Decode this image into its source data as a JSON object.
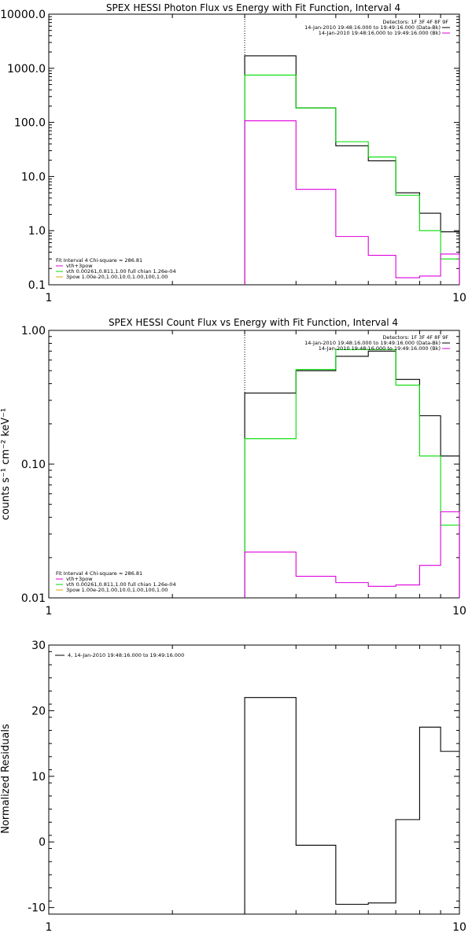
{
  "chart_data": [
    {
      "type": "line",
      "title": "SPEX HESSI Photon Flux vs Energy with Fit Function, Interval 4",
      "xscale": "log",
      "yscale": "log",
      "xlim": [
        1,
        10
      ],
      "ylim": [
        0.1,
        10000
      ],
      "x_tick_labels": [
        "1",
        "10"
      ],
      "y_tick_labels": [
        "0.1",
        "1.0",
        "10.0",
        "100.0",
        "1000.0",
        "10000.0"
      ],
      "y_ticks": [
        0.1,
        1,
        10,
        100,
        1000,
        10000
      ],
      "xlabel": "",
      "ylabel": "",
      "vline": 3,
      "legend_top_right": [
        "Detectors: 1F 3F 4F 8F 9F",
        "14-Jan-2010 19:48:16.000 to 19:49:16.000 (Data-Bk)",
        "14-Jan-2010 19:48:16.000 to 19:49:16.000 (Bk)"
      ],
      "legend_bottom_left": [
        "Fit Interval 4   Chi-square = 286.81",
        "vth+3pow",
        "vth 0.00261,0.811,1.00   full chian 1.26e-04",
        "3pow 1.00e-20,1.00,10.0,1.00,100,1.00"
      ],
      "bin_edges": [
        3,
        4,
        5,
        6,
        7,
        8,
        9,
        10
      ],
      "series": [
        {
          "color": "#000000",
          "values": [
            1700,
            185,
            37,
            19.5,
            5,
            2.1,
            0.95
          ]
        },
        {
          "color": "#00dd00",
          "values": [
            750,
            185,
            44,
            23,
            4.5,
            1.0,
            0.3
          ]
        },
        {
          "color": "#dd00dd",
          "values": [
            107,
            5.8,
            0.78,
            0.35,
            0.135,
            0.145,
            0.37
          ]
        }
      ]
    },
    {
      "type": "line",
      "title": "SPEX HESSI Count Flux vs Energy with Fit Function, Interval 4",
      "xscale": "log",
      "yscale": "log",
      "xlim": [
        1,
        10
      ],
      "ylim": [
        0.01,
        1.0
      ],
      "x_tick_labels": [
        "1",
        "10"
      ],
      "y_tick_labels": [
        "0.01",
        "0.10",
        "1.00"
      ],
      "y_ticks": [
        0.01,
        0.1,
        1.0
      ],
      "ylabel": "counts s⁻¹ cm⁻² keV⁻¹",
      "xlabel": "",
      "vline": 3,
      "legend_top_right": [
        "Detectors: 1F 3F 4F 8F 9F",
        "14-Jan-2010 19:48:16.000 to 19:49:16.000 (Data-Bk)",
        "14-Jan-2010 19:48:16.000 to 19:49:16.000 (Bk)"
      ],
      "legend_bottom_left": [
        "Fit Interval 4   Chi-square = 286.81",
        "vth+3pow",
        "vth 0.00261,0.811,1.00   full chian 1.26e-04",
        "3pow 1.00e-20,1.00,10.0,1.00,100,1.00"
      ],
      "bin_edges": [
        3,
        4,
        5,
        6,
        7,
        8,
        9,
        10
      ],
      "series": [
        {
          "color": "#000000",
          "values": [
            0.34,
            0.5,
            0.64,
            0.7,
            0.43,
            0.23,
            0.115
          ]
        },
        {
          "color": "#00dd00",
          "values": [
            0.155,
            0.51,
            0.72,
            0.72,
            0.39,
            0.115,
            0.035
          ]
        },
        {
          "color": "#dd00dd",
          "values": [
            0.022,
            0.0145,
            0.013,
            0.0122,
            0.0125,
            0.0175,
            0.044
          ]
        }
      ]
    },
    {
      "type": "line",
      "title": "",
      "xscale": "log",
      "yscale": "linear",
      "xlim": [
        1,
        10
      ],
      "ylim": [
        -11,
        30
      ],
      "x_tick_labels": [
        "1",
        "10"
      ],
      "y_tick_labels": [
        "-10",
        "0",
        "10",
        "20",
        "30"
      ],
      "y_ticks": [
        -10,
        0,
        10,
        20,
        30
      ],
      "ylabel": "Normalized Residuals",
      "xlabel": "",
      "legend_top_left": [
        "4, 14-Jan-2010 19:48:16.000 to 19:49:16.000"
      ],
      "bin_edges": [
        3,
        4,
        5,
        6,
        7,
        8,
        9,
        10
      ],
      "series": [
        {
          "color": "#000000",
          "values": [
            22,
            -0.5,
            -9.5,
            -9.3,
            3.4,
            17.5,
            13.8
          ]
        }
      ]
    }
  ]
}
